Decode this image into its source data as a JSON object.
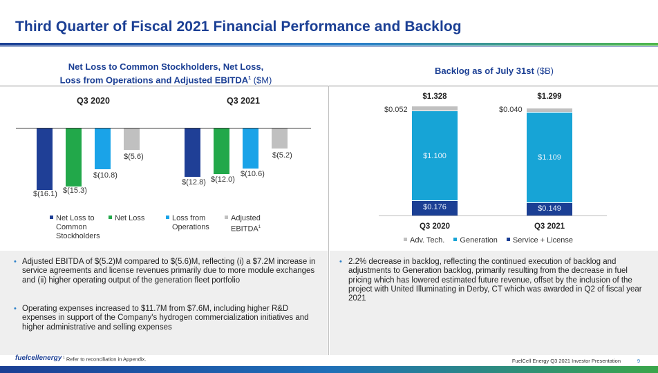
{
  "title": "Third Quarter of Fiscal 2021 Financial Performance and Backlog",
  "colors": {
    "brand_blue": "#1b3f94",
    "net_loss_to_common": "#1f3f96",
    "net_loss": "#22a84a",
    "loss_from_operations": "#1aa3e8",
    "adjusted_ebitda": "#c0c0c0",
    "adv_tech": "#c0c0c0",
    "generation": "#17a4d6",
    "service_license": "#1b3f94"
  },
  "left_chart": {
    "heading_line1": "Net Loss to Common Stockholders, Net Loss,",
    "heading_line2": "Loss from Operations and Adjusted EBITDA",
    "heading_sup": "1",
    "heading_unit": " ($M)",
    "groups": [
      {
        "label": "Q3 2020",
        "values": [
          "$(16.1)",
          "$(15.3)",
          "$(10.8)",
          "$(5.6)"
        ]
      },
      {
        "label": "Q3 2021",
        "values": [
          "$(12.8)",
          "$(12.0)",
          "$(10.6)",
          "$(5.2)"
        ]
      }
    ],
    "legend": [
      {
        "line1": "Net Loss to",
        "line2": "Common",
        "line3": "Stockholders"
      },
      {
        "line1": "Net Loss"
      },
      {
        "line1": "Loss from",
        "line2": "Operations"
      },
      {
        "line1": "Adjusted",
        "line2": "EBITDA",
        "sup": "1"
      }
    ]
  },
  "chart_data": [
    {
      "type": "bar",
      "title": "Net Loss to Common Stockholders, Net Loss, Loss from Operations and Adjusted EBITDA ($M)",
      "categories": [
        "Q3 2020",
        "Q3 2021"
      ],
      "series": [
        {
          "name": "Net Loss to Common Stockholders",
          "values": [
            -16.1,
            -12.8
          ]
        },
        {
          "name": "Net Loss",
          "values": [
            -15.3,
            -12.0
          ]
        },
        {
          "name": "Loss from Operations",
          "values": [
            -10.8,
            -10.6
          ]
        },
        {
          "name": "Adjusted EBITDA",
          "values": [
            -5.6,
            -5.2
          ]
        }
      ],
      "ylim": [
        -17,
        0
      ]
    },
    {
      "type": "bar",
      "stacked": true,
      "title": "Backlog as of July 31st ($B)",
      "categories": [
        "Q3 2020",
        "Q3 2021"
      ],
      "series": [
        {
          "name": "Service + License",
          "values": [
            0.176,
            0.149
          ]
        },
        {
          "name": "Generation",
          "values": [
            1.1,
            1.109
          ]
        },
        {
          "name": "Adv. Tech.",
          "values": [
            0.052,
            0.04
          ]
        }
      ],
      "totals": [
        1.328,
        1.299
      ],
      "ylim": [
        0,
        1.4
      ]
    }
  ],
  "right_chart": {
    "heading": "Backlog as of July 31st",
    "heading_unit": " ($B)",
    "columns": [
      {
        "label": "Q3 2020",
        "total": "$1.328",
        "adv": "$0.052",
        "generation": "$1.100",
        "service": "$0.176"
      },
      {
        "label": "Q3 2021",
        "total": "$1.299",
        "adv": "$0.040",
        "generation": "$1.109",
        "service": "$0.149"
      }
    ],
    "legend": [
      "Adv. Tech.",
      "Generation",
      "Service + License"
    ]
  },
  "notes_left": [
    "Adjusted EBITDA of $(5.2)M compared to $(5.6)M, reflecting (i) a $7.2M increase in service agreements and license revenues primarily due to more module exchanges and (ii) higher operating output of the generation fleet portfolio",
    "Operating expenses increased to $11.7M from $7.6M, including higher R&D expenses in support of the Company's hydrogen commercialization initiatives and higher administrative and selling expenses"
  ],
  "notes_right": [
    "2.2% decrease in backlog, reflecting the continued execution of backlog and adjustments to Generation backlog, primarily resulting from the decrease in fuel pricing which has lowered estimated future revenue, offset by the inclusion of the project with United Illuminating in Derby, CT which was awarded in Q2 of fiscal year 2021"
  ],
  "footer": {
    "logo": "fuelcellenergy",
    "note_sup": "1",
    "note": "Refer to reconciliation in Appendix.",
    "presentation": "FuelCell Energy Q3 2021 Investor Presentation",
    "page": "9"
  }
}
